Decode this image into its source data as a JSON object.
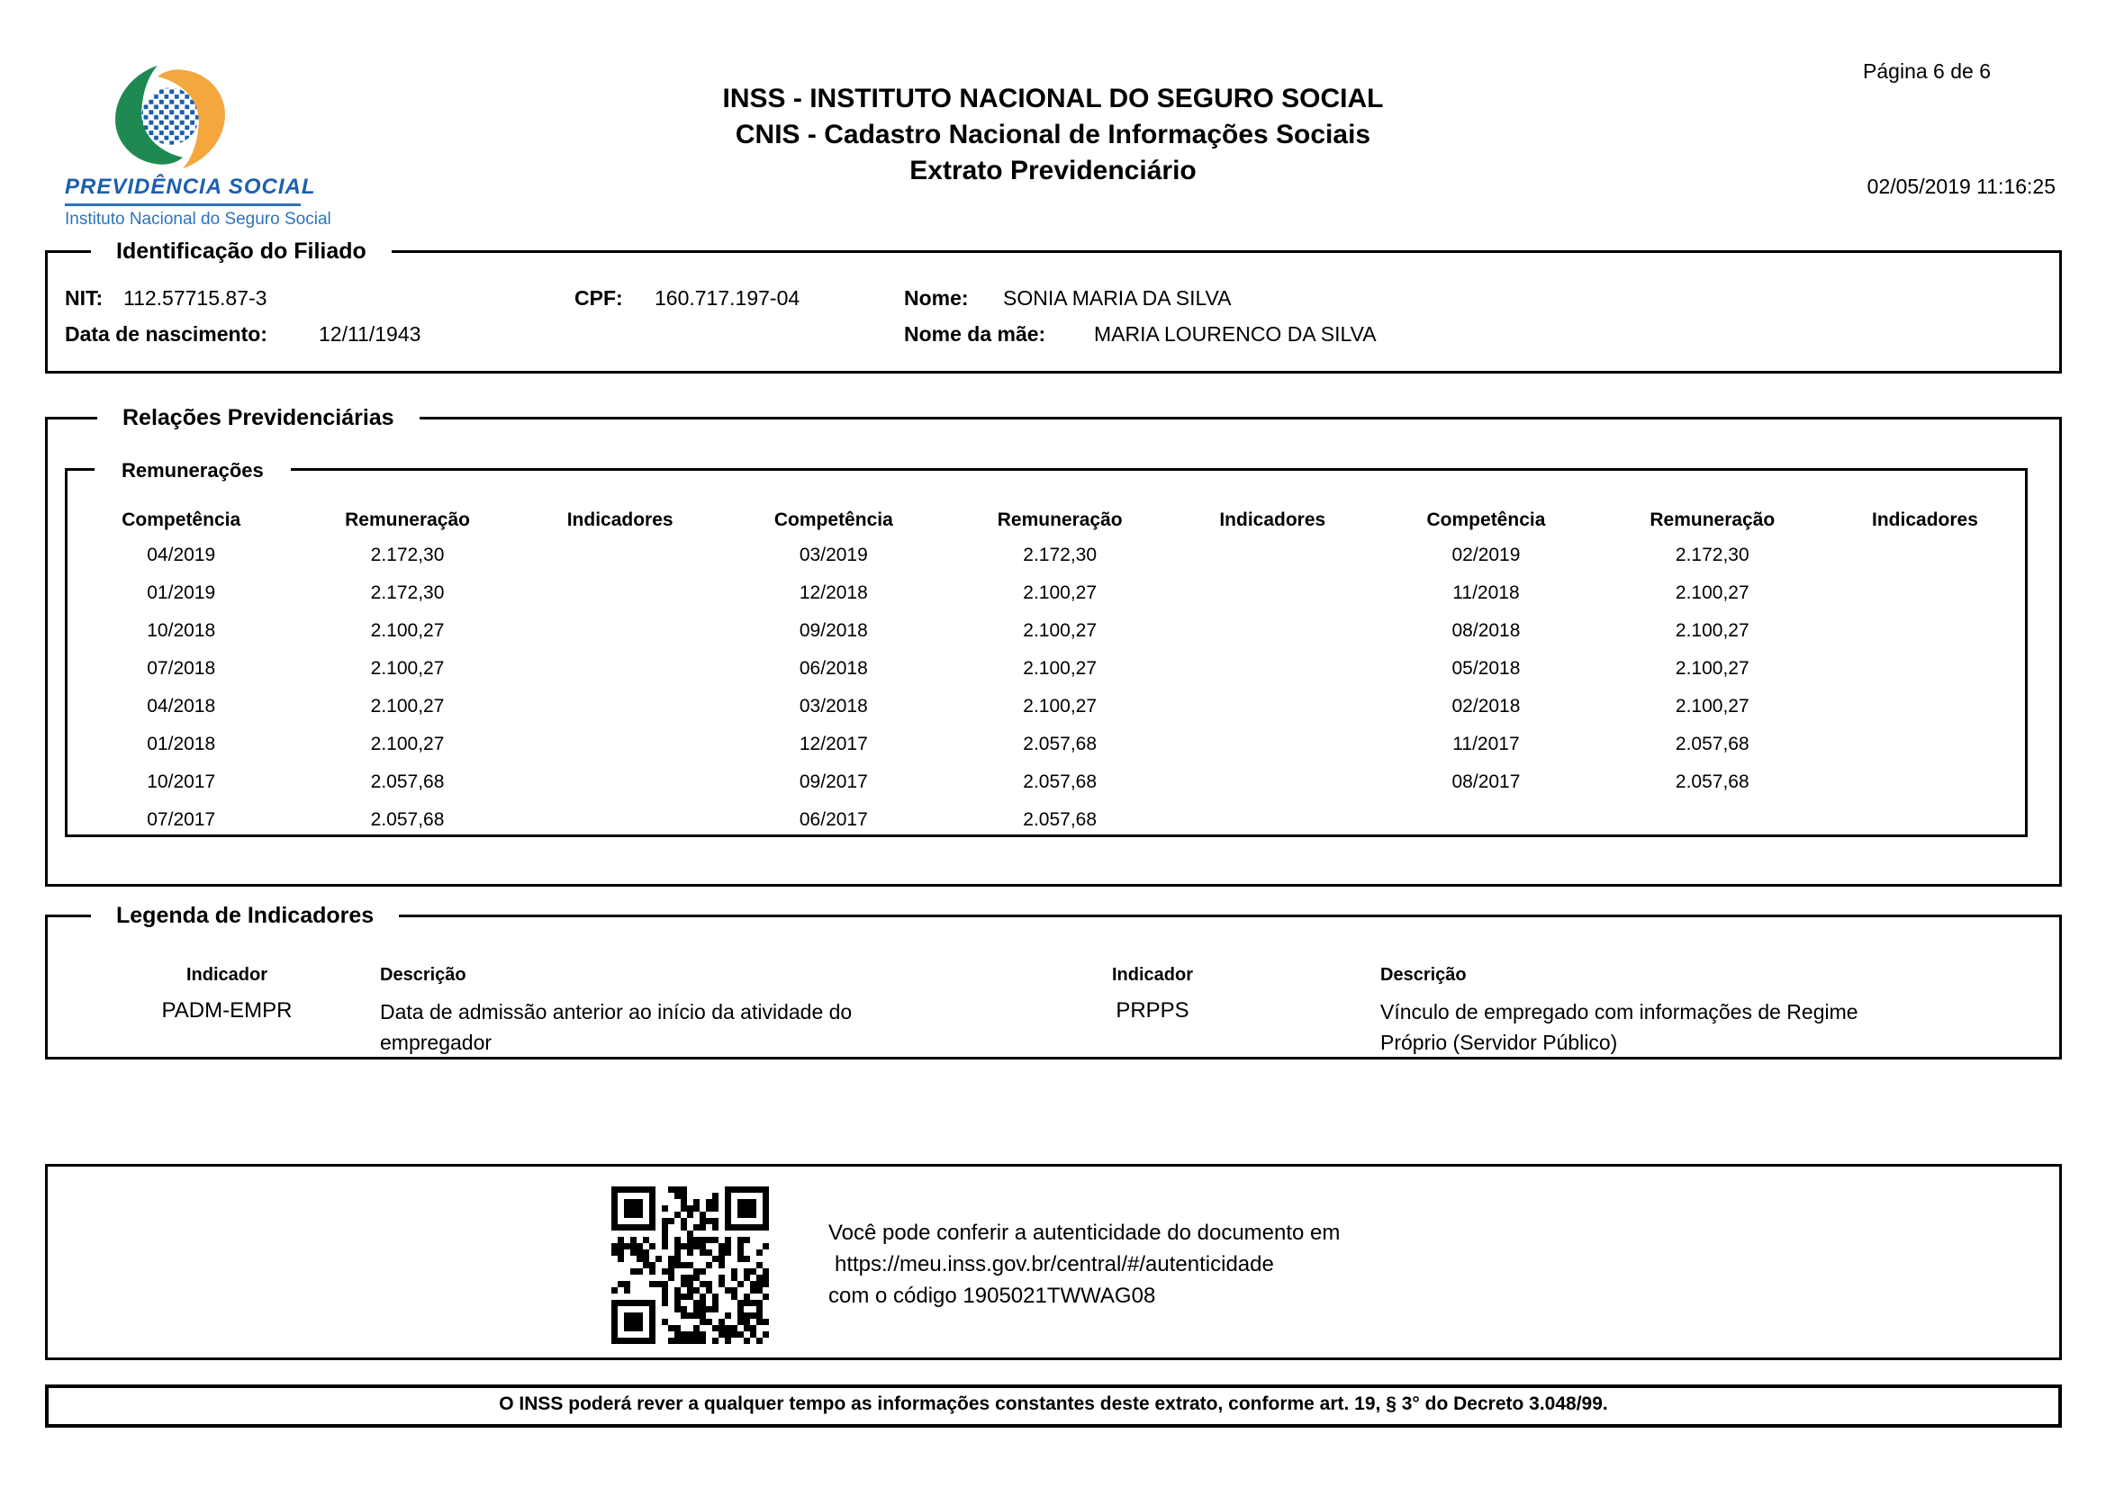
{
  "header": {
    "logo": {
      "brand": "PREVIDÊNCIA SOCIAL",
      "subtitle": "Instituto Nacional do Seguro Social",
      "colors": {
        "green": "#1e8a52",
        "orange": "#f3a73d",
        "blue": "#1b5eab",
        "text_blue": "#1c5fae"
      }
    },
    "title_line1": "INSS - INSTITUTO NACIONAL DO SEGURO SOCIAL",
    "title_line2": "CNIS - Cadastro Nacional de Informações Sociais",
    "title_line3": "Extrato Previdenciário",
    "page_info": "Página 6 de 6",
    "datetime": "02/05/2019 11:16:25"
  },
  "identification": {
    "section_title": "Identificação do Filiado",
    "nit_label": "NIT:",
    "nit": "112.57715.87-3",
    "cpf_label": "CPF:",
    "cpf": "160.717.197-04",
    "nome_label": "Nome:",
    "nome": "SONIA MARIA DA SILVA",
    "nascimento_label": "Data de nascimento:",
    "nascimento": "12/11/1943",
    "mae_label": "Nome da mãe:",
    "mae": "MARIA LOURENCO DA SILVA"
  },
  "relacoes": {
    "section_title": "Relações Previdenciárias",
    "remuneracoes": {
      "section_title": "Remunerações",
      "headers": [
        "Competência",
        "Remuneração",
        "Indicadores",
        "Competência",
        "Remuneração",
        "Indicadores",
        "Competência",
        "Remuneração",
        "Indicadores"
      ],
      "rows": [
        [
          "04/2019",
          "2.172,30",
          "",
          "03/2019",
          "2.172,30",
          "",
          "02/2019",
          "2.172,30",
          ""
        ],
        [
          "01/2019",
          "2.172,30",
          "",
          "12/2018",
          "2.100,27",
          "",
          "11/2018",
          "2.100,27",
          ""
        ],
        [
          "10/2018",
          "2.100,27",
          "",
          "09/2018",
          "2.100,27",
          "",
          "08/2018",
          "2.100,27",
          ""
        ],
        [
          "07/2018",
          "2.100,27",
          "",
          "06/2018",
          "2.100,27",
          "",
          "05/2018",
          "2.100,27",
          ""
        ],
        [
          "04/2018",
          "2.100,27",
          "",
          "03/2018",
          "2.100,27",
          "",
          "02/2018",
          "2.100,27",
          ""
        ],
        [
          "01/2018",
          "2.100,27",
          "",
          "12/2017",
          "2.057,68",
          "",
          "11/2017",
          "2.057,68",
          ""
        ],
        [
          "10/2017",
          "2.057,68",
          "",
          "09/2017",
          "2.057,68",
          "",
          "08/2017",
          "2.057,68",
          ""
        ],
        [
          "07/2017",
          "2.057,68",
          "",
          "06/2017",
          "2.057,68",
          "",
          "",
          "",
          ""
        ]
      ]
    }
  },
  "legenda": {
    "section_title": "Legenda de Indicadores",
    "cols": [
      {
        "indicador_label": "Indicador",
        "descricao_label": "Descrição",
        "indicador": "PADM-EMPR",
        "descricao": "Data de admissão anterior ao início da atividade do\nempregador"
      },
      {
        "indicador_label": "Indicador",
        "descricao_label": "Descrição",
        "indicador": "PRPPS",
        "descricao": "Vínculo de empregado com informações de Regime\nPróprio (Servidor Público)"
      }
    ]
  },
  "autenticidade": {
    "line1": "Você pode conferir a autenticidade do documento em",
    "line2": "https://meu.inss.gov.br/central/#/autenticidade",
    "line3": "com o código 1905021TWWAG08"
  },
  "footer": {
    "text": "O INSS poderá rever a qualquer tempo as informações constantes deste extrato, conforme art. 19, § 3° do Decreto 3.048/99."
  }
}
